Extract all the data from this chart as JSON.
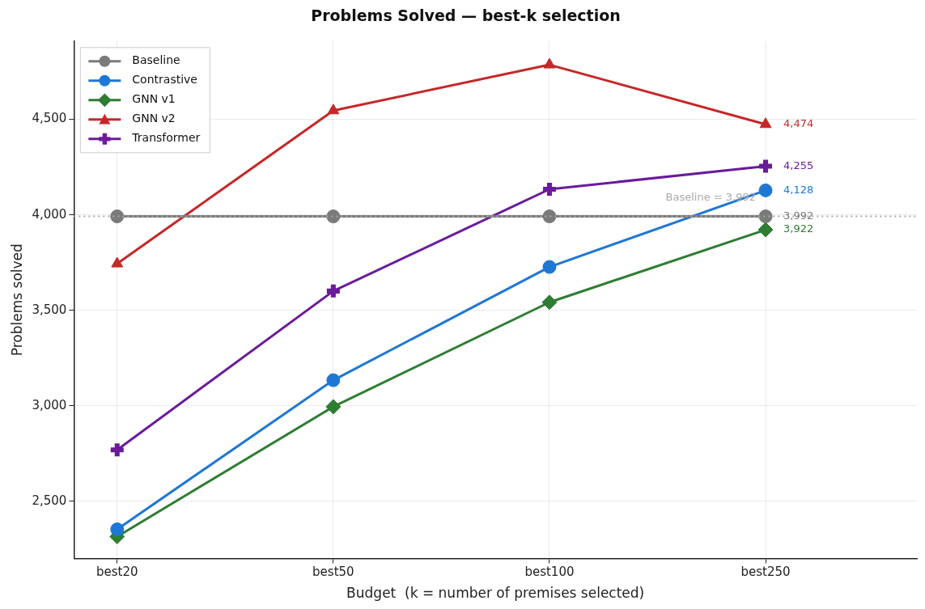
{
  "chart_data": {
    "type": "line",
    "title": "Problems Solved — best-k selection",
    "xlabel": "Budget  (k = number of premises selected)",
    "ylabel": "Problems solved",
    "categories": [
      "best20",
      "best50",
      "best100",
      "best250"
    ],
    "series": [
      {
        "name": "Baseline",
        "color": "#7a7a7a",
        "marker": "circle",
        "values": [
          3992,
          3992,
          3992,
          3992
        ],
        "value_labels": [
          null,
          null,
          null,
          "3,992"
        ]
      },
      {
        "name": "Contrastive",
        "color": "#1f77d4",
        "marker": "circle",
        "values": [
          2353,
          3134,
          3727,
          4128
        ],
        "value_labels": [
          null,
          null,
          null,
          "4,128"
        ]
      },
      {
        "name": "GNN v1",
        "color": "#2e7d32",
        "marker": "diamond",
        "values": [
          2315,
          2995,
          3542,
          3922
        ],
        "value_labels": [
          null,
          null,
          null,
          "3,922"
        ]
      },
      {
        "name": "GNN v2",
        "color": "#c62828",
        "marker": "triangle",
        "values": [
          3744,
          4546,
          4786,
          4474
        ],
        "value_labels": [
          null,
          null,
          null,
          "4,474"
        ]
      },
      {
        "name": "Transformer",
        "color": "#6a1b9a",
        "marker": "cross",
        "values": [
          2769,
          3601,
          4134,
          4255
        ],
        "value_labels": [
          null,
          null,
          null,
          "4,255"
        ]
      }
    ],
    "ylim": [
      2200,
      4910
    ],
    "yticks": [
      {
        "value": 2500,
        "label": "2,500"
      },
      {
        "value": 3000,
        "label": "3,000"
      },
      {
        "value": 3500,
        "label": "3,500"
      },
      {
        "value": 4000,
        "label": "4,000"
      },
      {
        "value": 4500,
        "label": "4,500"
      }
    ],
    "ref_lines": [
      {
        "axis": "y",
        "value": 3992,
        "label": "Baseline = 3,992",
        "color": "#aaaaaa",
        "line_style": "dotted"
      }
    ],
    "grid": true,
    "legend": "top left",
    "line_style": "solid"
  }
}
